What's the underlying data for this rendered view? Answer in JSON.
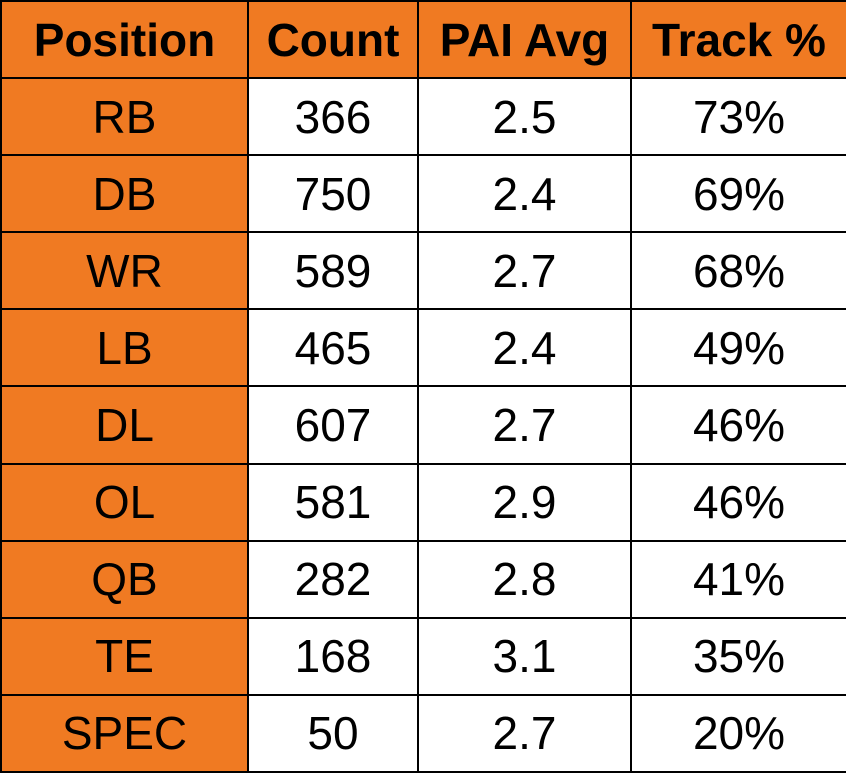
{
  "table": {
    "header": [
      "Position",
      "Count",
      "PAI Avg",
      "Track %"
    ],
    "rows": [
      [
        "RB",
        "366",
        "2.5",
        "73%"
      ],
      [
        "DB",
        "750",
        "2.4",
        "69%"
      ],
      [
        "WR",
        "589",
        "2.7",
        "68%"
      ],
      [
        "LB",
        "465",
        "2.4",
        "49%"
      ],
      [
        "DL",
        "607",
        "2.7",
        "46%"
      ],
      [
        "OL",
        "581",
        "2.9",
        "46%"
      ],
      [
        "QB",
        "282",
        "2.8",
        "41%"
      ],
      [
        "TE",
        "168",
        "3.1",
        "35%"
      ],
      [
        "SPEC",
        "50",
        "2.7",
        "20%"
      ]
    ]
  }
}
